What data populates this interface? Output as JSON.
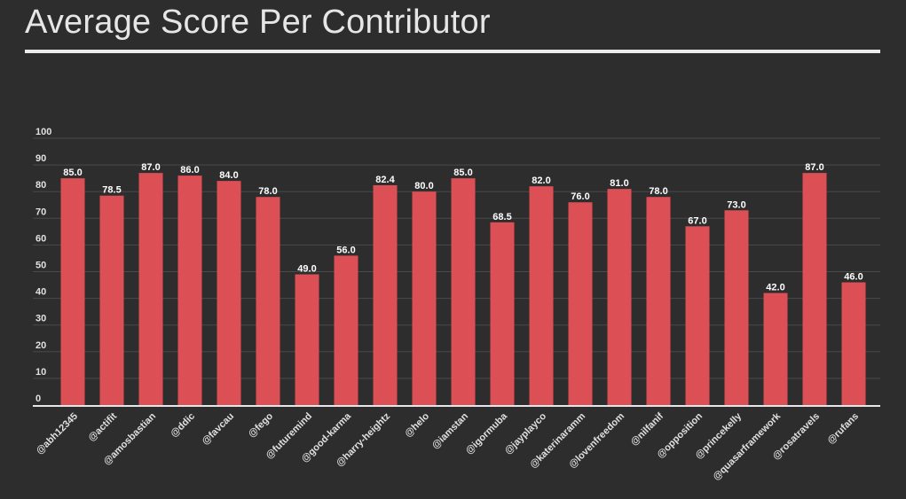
{
  "page": {
    "title": "Average Score Per Contributor"
  },
  "colors": {
    "background": "#2d2d2d",
    "bar": "#dc4f55",
    "text": "#e6e6e6",
    "grid": "#4a4a4a"
  },
  "chart_data": {
    "type": "bar",
    "title": "Average Score Per Contributor",
    "xlabel": "",
    "ylabel": "",
    "ylim": [
      0,
      100
    ],
    "yticks": [
      0,
      10,
      20,
      30,
      40,
      50,
      60,
      70,
      80,
      90,
      100
    ],
    "grid": true,
    "legend": "none",
    "categories": [
      "@abh12345",
      "@actifit",
      "@amosbastian",
      "@ddic",
      "@favcau",
      "@fego",
      "@futuremind",
      "@good-karma",
      "@harry-heightz",
      "@helo",
      "@iamstan",
      "@igormuba",
      "@jayplayco",
      "@katerinaramm",
      "@lovenfreedom",
      "@nilfanif",
      "@opposition",
      "@princekelly",
      "@quasarframework",
      "@rosatravels",
      "@rufans"
    ],
    "values": [
      85.0,
      78.5,
      87.0,
      86.0,
      84.0,
      78.0,
      49.0,
      56.0,
      82.4,
      80.0,
      85.0,
      68.5,
      82.0,
      76.0,
      81.0,
      78.0,
      67.0,
      73.0,
      42.0,
      87.0,
      46.0
    ],
    "value_labels": [
      "85.0",
      "78.5",
      "87.0",
      "86.0",
      "84.0",
      "78.0",
      "49.0",
      "56.0",
      "82.4",
      "80.0",
      "85.0",
      "68.5",
      "82.0",
      "76.0",
      "81.0",
      "78.0",
      "67.0",
      "73.0",
      "42.0",
      "87.0",
      "46.0"
    ]
  }
}
